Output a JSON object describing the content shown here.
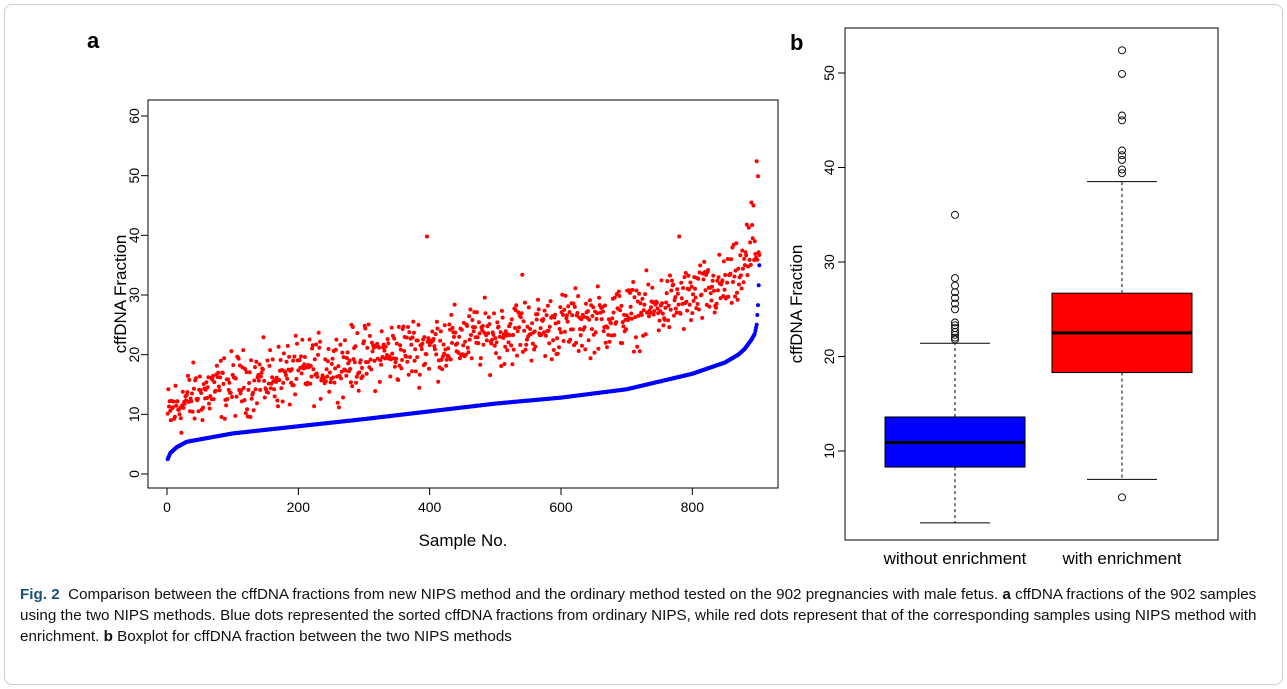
{
  "panel_a_label": "a",
  "panel_b_label": "b",
  "caption": {
    "fig_label": "Fig. 2",
    "text_1": "Comparison between the cffDNA fractions from new NIPS method and the ordinary method tested on the 902 pregnancies with male fetus.",
    "label_a": "a",
    "text_2": "cffDNA fractions of the 902 samples using the two NIPS methods. Blue dots represented the sorted cffDNA fractions from ordinary NIPS, while red dots represent that of the corresponding samples using NIPS method with enrichment.",
    "label_b": "b",
    "text_3": "Boxplot for cffDNA fraction between the two NIPS methods"
  },
  "colors": {
    "ordinary": "#0000ff",
    "enrichment": "#ff0000",
    "median": "#000000"
  },
  "chart_data": [
    {
      "type": "scatter",
      "xlabel": "Sample No.",
      "ylabel": "cffDNA Fraction",
      "xlim": [
        0,
        902
      ],
      "ylim": [
        0,
        60
      ],
      "xticks": [
        0,
        200,
        400,
        600,
        800
      ],
      "yticks": [
        0,
        10,
        20,
        30,
        40,
        50,
        60
      ],
      "grid": false,
      "n_samples": 902,
      "series": [
        {
          "color": "#0000ff",
          "curve_x": [
            1,
            5,
            15,
            30,
            60,
            100,
            200,
            300,
            400,
            500,
            600,
            700,
            800,
            850,
            870,
            880,
            890,
            895,
            898,
            900,
            902
          ],
          "curve_y": [
            2.5,
            3.5,
            4.5,
            5.4,
            6.0,
            6.8,
            8.0,
            9.2,
            10.5,
            11.8,
            12.8,
            14.2,
            16.8,
            18.7,
            20.0,
            21.0,
            22.5,
            23.5,
            25.0,
            28.3,
            35.0
          ]
        },
        {
          "color": "#ff0000",
          "trend_x": [
            0,
            10,
            50,
            100,
            200,
            300,
            400,
            500,
            600,
            700,
            800,
            850,
            880,
            900
          ],
          "trend_y": [
            9.5,
            11.0,
            13.5,
            15.0,
            17.0,
            19.5,
            21.5,
            23.5,
            25.0,
            26.5,
            29.5,
            31.5,
            34.0,
            38.0
          ],
          "spread": 2.6,
          "outliers": [
            [
              898,
              52.4
            ],
            [
              900,
              49.9
            ],
            [
              890,
              45.5
            ],
            [
              893,
              45.0
            ],
            [
              883,
              41.8
            ],
            [
              886,
              41.3
            ],
            [
              780,
              39.8
            ],
            [
              396,
              39.8
            ],
            [
              541,
              33.4
            ],
            [
              892,
              39.5
            ],
            [
              895,
              39.0
            ]
          ]
        }
      ]
    },
    {
      "type": "box",
      "categories": [
        "without enrichment",
        "with enrichment"
      ],
      "ylabel": "cffDNA Fraction",
      "ylim": [
        1,
        54
      ],
      "yticks": [
        10,
        20,
        30,
        40,
        50
      ],
      "boxes": [
        {
          "name": "without enrichment",
          "color": "#0000ff",
          "whisker_low": 2.4,
          "q1": 8.3,
          "median": 10.9,
          "q3": 13.6,
          "whisker_high": 21.4,
          "outliers": [
            35.0,
            28.3,
            27.5,
            26.8,
            26.2,
            25.6,
            25.0,
            23.6,
            23.3,
            23.0,
            22.6,
            22.3,
            22.0,
            21.8
          ]
        },
        {
          "name": "with enrichment",
          "color": "#ff0000",
          "whisker_low": 7.0,
          "q1": 18.3,
          "median": 22.5,
          "q3": 26.7,
          "whisker_high": 38.5,
          "outliers": [
            52.4,
            49.9,
            45.5,
            45.0,
            41.8,
            41.3,
            40.8,
            39.8,
            39.4,
            5.1
          ]
        }
      ]
    }
  ]
}
